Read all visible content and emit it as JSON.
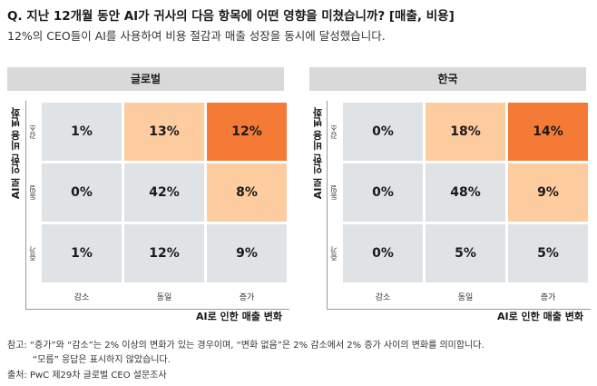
{
  "title": "Q. 지난 12개월 동안 AI가 귀사의 다음 항목에 어떤 영향을 미쳤습니까? [매출, 비용]",
  "subtitle": "12%의 CEO들이 AI를 사용하여 비용 절감과 매출 성장을 동시에 달성했습니다.",
  "notes": {
    "line1": "참고: “증가”와 “감소”는 2% 이상의 변화가 있는 경우이며, “변화 없음”은 2% 감소에서 2% 증가 사이의 변화를 의미합니다.",
    "line2": "“모름” 응답은 표시하지 않았습니다.",
    "line3": "출처: PwC 제29차 글로벌 CEO 설문조사"
  },
  "colors": {
    "neutral": "#dfe3e6",
    "light_orange": "#fdcc9f",
    "dark_orange": "#f47a35"
  },
  "chart_data": [
    {
      "type": "heatmap",
      "panel": "글로벌",
      "ylabel": "AI로 인한 비용 변화",
      "xlabel": "AI로 인한 매출 변화",
      "rows": [
        "감소",
        "동일",
        "증가"
      ],
      "columns": [
        "감소",
        "동일",
        "증가"
      ],
      "values": [
        [
          "1%",
          "13%",
          "12%"
        ],
        [
          "0%",
          "42%",
          "8%"
        ],
        [
          "1%",
          "12%",
          "9%"
        ]
      ],
      "cell_colors": [
        [
          "neutral",
          "light_orange",
          "dark_orange"
        ],
        [
          "neutral",
          "neutral",
          "light_orange"
        ],
        [
          "neutral",
          "neutral",
          "neutral"
        ]
      ]
    },
    {
      "type": "heatmap",
      "panel": "한국",
      "ylabel": "AI로 인한 비용 변화",
      "xlabel": "AI로 인한 매출 변화",
      "rows": [
        "감소",
        "동일",
        "증가"
      ],
      "columns": [
        "감소",
        "동일",
        "증가"
      ],
      "values": [
        [
          "0%",
          "18%",
          "14%"
        ],
        [
          "0%",
          "48%",
          "9%"
        ],
        [
          "0%",
          "5%",
          "5%"
        ]
      ],
      "cell_colors": [
        [
          "neutral",
          "light_orange",
          "dark_orange"
        ],
        [
          "neutral",
          "neutral",
          "light_orange"
        ],
        [
          "neutral",
          "neutral",
          "neutral"
        ]
      ]
    }
  ]
}
